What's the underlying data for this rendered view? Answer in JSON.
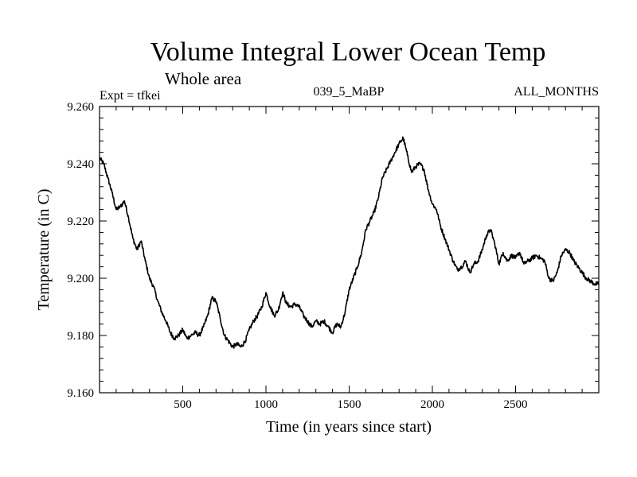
{
  "chart_data": {
    "type": "line",
    "title": "Volume Integral Lower Ocean Temp",
    "subtitle": "Whole area",
    "experiment": "Expt = tfkei",
    "run_id": "039_5_MaBP",
    "season": "ALL_MONTHS",
    "xlabel": "Time (in years since start)",
    "ylabel": "Temperature (in C)",
    "xlim": [
      0,
      3000
    ],
    "ylim": [
      9.16,
      9.26
    ],
    "x_ticks": [
      500,
      1000,
      1500,
      2000,
      2500
    ],
    "y_ticks": [
      "9.160",
      "9.180",
      "9.200",
      "9.220",
      "9.240",
      "9.260"
    ],
    "grid": false,
    "series": [
      {
        "color": "#000000",
        "x": [
          0,
          25,
          50,
          75,
          100,
          125,
          150,
          175,
          200,
          225,
          250,
          275,
          300,
          325,
          350,
          375,
          400,
          425,
          450,
          475,
          500,
          525,
          550,
          575,
          600,
          625,
          650,
          675,
          700,
          725,
          750,
          775,
          800,
          825,
          850,
          875,
          900,
          925,
          950,
          975,
          1000,
          1025,
          1050,
          1075,
          1100,
          1125,
          1150,
          1175,
          1200,
          1225,
          1250,
          1275,
          1300,
          1325,
          1350,
          1375,
          1400,
          1425,
          1450,
          1475,
          1500,
          1525,
          1550,
          1575,
          1600,
          1625,
          1650,
          1675,
          1700,
          1725,
          1750,
          1775,
          1800,
          1825,
          1850,
          1875,
          1900,
          1925,
          1950,
          1975,
          2000,
          2025,
          2050,
          2075,
          2100,
          2125,
          2150,
          2175,
          2200,
          2225,
          2250,
          2275,
          2300,
          2325,
          2350,
          2375,
          2400,
          2425,
          2450,
          2475,
          2500,
          2525,
          2550,
          2575,
          2600,
          2625,
          2650,
          2675,
          2700,
          2725,
          2750,
          2775,
          2800,
          2825,
          2850,
          2875,
          2900,
          2925,
          2950,
          2975,
          3000
        ],
        "y": [
          9.242,
          9.24,
          9.235,
          9.23,
          9.224,
          9.225,
          9.227,
          9.221,
          9.214,
          9.21,
          9.213,
          9.206,
          9.2,
          9.197,
          9.192,
          9.188,
          9.185,
          9.181,
          9.179,
          9.18,
          9.182,
          9.179,
          9.18,
          9.181,
          9.18,
          9.183,
          9.187,
          9.193,
          9.192,
          9.186,
          9.18,
          9.178,
          9.176,
          9.177,
          9.176,
          9.178,
          9.182,
          9.185,
          9.187,
          9.19,
          9.195,
          9.19,
          9.187,
          9.189,
          9.195,
          9.191,
          9.19,
          9.191,
          9.19,
          9.187,
          9.185,
          9.183,
          9.185,
          9.184,
          9.185,
          9.183,
          9.181,
          9.184,
          9.183,
          9.188,
          9.196,
          9.2,
          9.204,
          9.209,
          9.217,
          9.22,
          9.223,
          9.228,
          9.235,
          9.238,
          9.241,
          9.244,
          9.247,
          9.249,
          9.243,
          9.237,
          9.239,
          9.24,
          9.238,
          9.231,
          9.226,
          9.224,
          9.218,
          9.214,
          9.21,
          9.206,
          9.203,
          9.204,
          9.206,
          9.202,
          9.205,
          9.206,
          9.21,
          9.215,
          9.217,
          9.212,
          9.205,
          9.209,
          9.206,
          9.208,
          9.207,
          9.209,
          9.205,
          9.206,
          9.207,
          9.208,
          9.207,
          9.206,
          9.2,
          9.199,
          9.202,
          9.208,
          9.21,
          9.209,
          9.206,
          9.204,
          9.202,
          9.2,
          9.199,
          9.198,
          9.198
        ]
      }
    ]
  }
}
